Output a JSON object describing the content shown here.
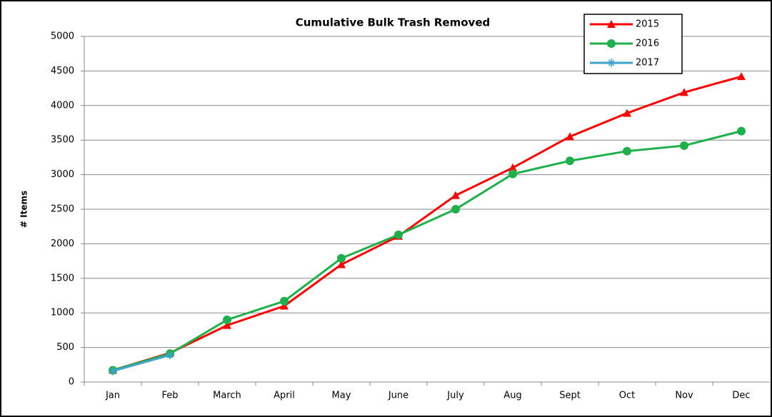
{
  "chart_data": {
    "type": "line",
    "title": "Cumulative Bulk Trash Removed",
    "y_label": "# Items",
    "categories": [
      "Jan",
      "Feb",
      "March",
      "April",
      "May",
      "June",
      "July",
      "Aug",
      "Sept",
      "Oct",
      "Nov",
      "Dec"
    ],
    "series": [
      {
        "name": "2015",
        "color": "#ff0000",
        "marker": "triangle",
        "values": [
          170,
          420,
          820,
          1100,
          1700,
          2110,
          2700,
          3100,
          3550,
          3890,
          4190,
          4420
        ]
      },
      {
        "name": "2016",
        "color": "#1fb04b",
        "marker": "circle",
        "values": [
          170,
          410,
          900,
          1170,
          1790,
          2130,
          2500,
          3010,
          3200,
          3340,
          3420,
          3630
        ]
      },
      {
        "name": "2017",
        "color": "#3ea3c8",
        "marker": "asterisk",
        "values": [
          160,
          390,
          null,
          null,
          null,
          null,
          null,
          null,
          null,
          null,
          null,
          null
        ]
      }
    ],
    "ylim": [
      0,
      5000
    ],
    "yticks": [
      0,
      500,
      1000,
      1500,
      2000,
      2500,
      3000,
      3500,
      4000,
      4500,
      5000
    ],
    "grid": true,
    "legend": "top-right"
  }
}
